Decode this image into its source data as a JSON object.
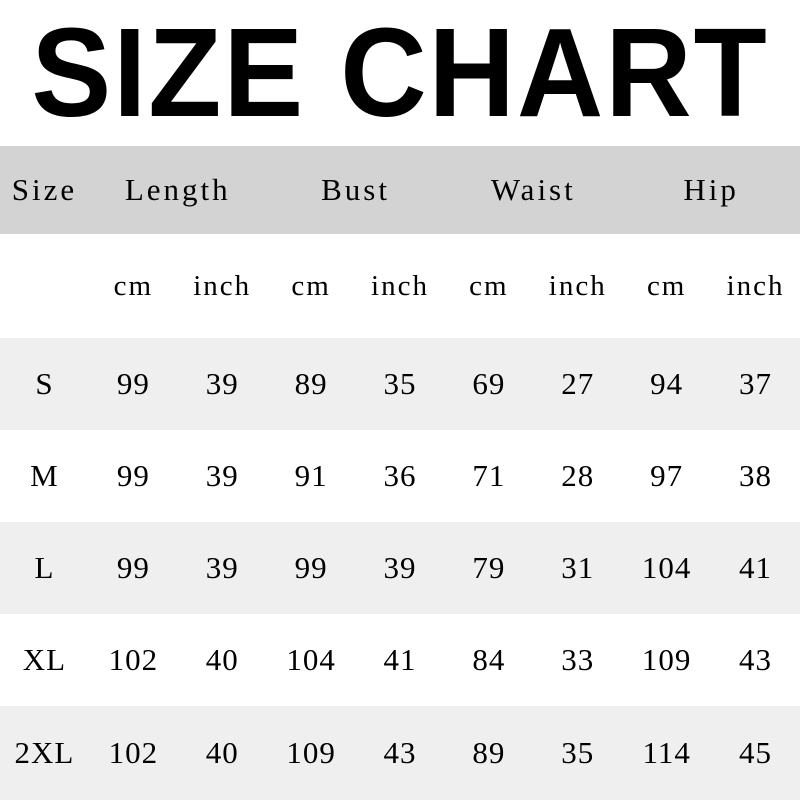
{
  "title": "SIZE CHART",
  "colors": {
    "header_row_bg": "#d3d3d3",
    "alt_row_bg": "#efefef",
    "white_row_bg": "#ffffff",
    "text": "#000000",
    "page_bg": "#ffffff"
  },
  "table": {
    "headers": [
      "Size",
      "Length",
      "Bust",
      "Waist",
      "Hip"
    ],
    "units": [
      "cm",
      "inch",
      "cm",
      "inch",
      "cm",
      "inch",
      "cm",
      "inch"
    ],
    "rows": [
      {
        "size": "S",
        "cells": [
          "99",
          "39",
          "89",
          "35",
          "69",
          "27",
          "94",
          "37"
        ]
      },
      {
        "size": "M",
        "cells": [
          "99",
          "39",
          "91",
          "36",
          "71",
          "28",
          "97",
          "38"
        ]
      },
      {
        "size": "L",
        "cells": [
          "99",
          "39",
          "99",
          "39",
          "79",
          "31",
          "104",
          "41"
        ]
      },
      {
        "size": "XL",
        "cells": [
          "102",
          "40",
          "104",
          "41",
          "84",
          "33",
          "109",
          "43"
        ]
      },
      {
        "size": "2XL",
        "cells": [
          "102",
          "40",
          "109",
          "43",
          "89",
          "35",
          "114",
          "45"
        ]
      }
    ]
  },
  "chart_data": {
    "type": "table",
    "title": "SIZE CHART",
    "columns": [
      "Size",
      "Length (cm)",
      "Length (inch)",
      "Bust (cm)",
      "Bust (inch)",
      "Waist (cm)",
      "Waist (inch)",
      "Hip (cm)",
      "Hip (inch)"
    ],
    "rows": [
      [
        "S",
        99,
        39,
        89,
        35,
        69,
        27,
        94,
        37
      ],
      [
        "M",
        99,
        39,
        91,
        36,
        71,
        28,
        97,
        38
      ],
      [
        "L",
        99,
        39,
        99,
        39,
        79,
        31,
        104,
        41
      ],
      [
        "XL",
        102,
        40,
        104,
        41,
        84,
        33,
        109,
        43
      ],
      [
        "2XL",
        102,
        40,
        109,
        43,
        89,
        35,
        114,
        45
      ]
    ],
    "layout": {
      "header_background": "#d3d3d3",
      "zebra_background": "#efefef",
      "grid": "off",
      "size_column_span": 1,
      "measure_group_span": 2
    }
  }
}
